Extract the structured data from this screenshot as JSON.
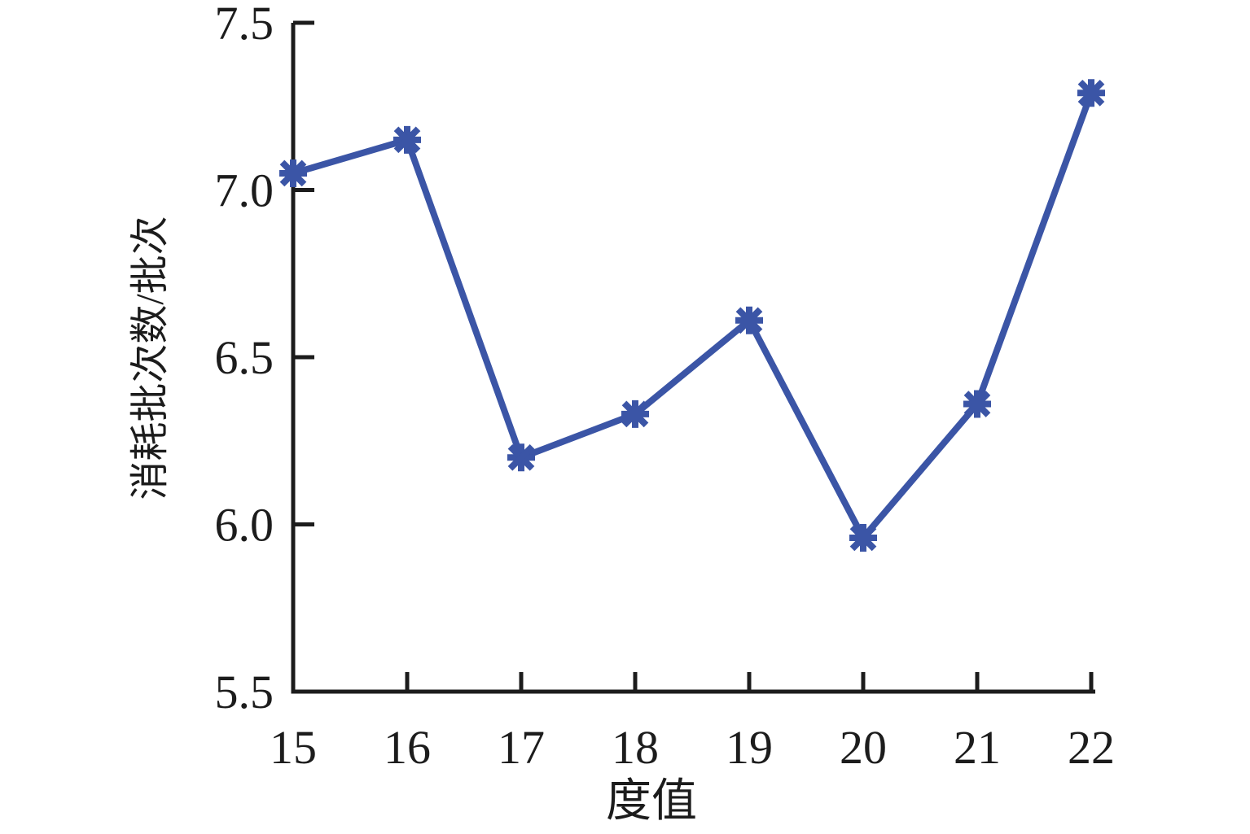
{
  "figure": {
    "background": "#ffffff",
    "text_color": "#1c1c1c",
    "axis_color": "#1c1c1c"
  },
  "chart_data": {
    "type": "line",
    "title": "",
    "xlabel": "度值",
    "ylabel": "消耗批次数/批次",
    "x": [
      15,
      16,
      17,
      18,
      19,
      20,
      21,
      22
    ],
    "series": [
      {
        "name": "消耗批次数",
        "color": "#3b55a6",
        "marker": "asterisk-8",
        "values": [
          7.05,
          7.15,
          6.2,
          6.33,
          6.61,
          5.96,
          6.36,
          7.29
        ]
      }
    ],
    "xlim": [
      15,
      22
    ],
    "ylim": [
      5.5,
      7.5
    ],
    "x_ticks": [
      15,
      16,
      17,
      18,
      19,
      20,
      21,
      22
    ],
    "x_tick_labels": [
      "15",
      "16",
      "17",
      "18",
      "19",
      "20",
      "21",
      "22"
    ],
    "y_ticks": [
      5.5,
      6.0,
      6.5,
      7.0,
      7.5
    ],
    "y_tick_labels": [
      "5.5",
      "6.0",
      "6.5",
      "7.0",
      "7.5"
    ],
    "grid": false,
    "legend_position": "none"
  }
}
